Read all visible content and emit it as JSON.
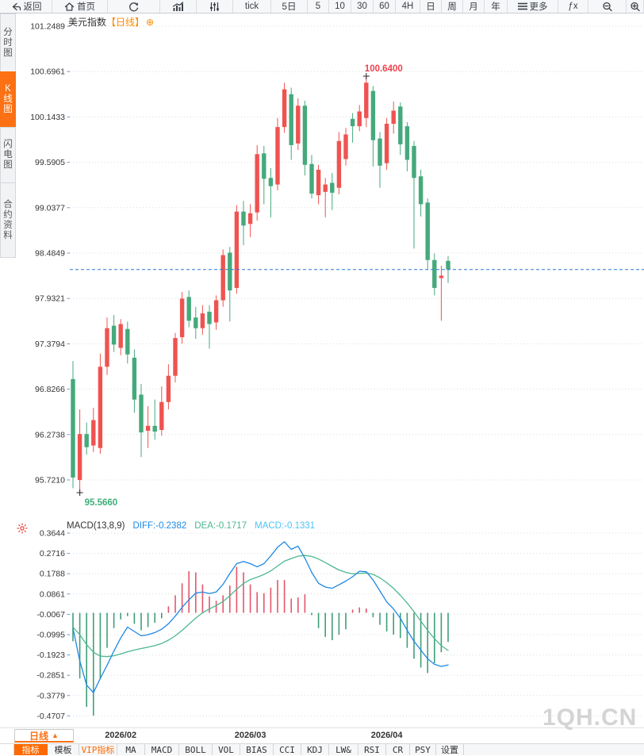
{
  "toolbar_top": {
    "items": [
      {
        "id": "back",
        "label": "返回",
        "icon": "back-arrow"
      },
      {
        "id": "home",
        "label": "首页",
        "icon": "home"
      },
      {
        "id": "refresh",
        "label": "",
        "icon": "refresh"
      },
      {
        "id": "chart-style",
        "label": "",
        "icon": "bar-chart"
      },
      {
        "id": "indicator-sliders",
        "label": "",
        "icon": "sliders"
      },
      {
        "id": "tick",
        "label": "tick"
      },
      {
        "id": "5d",
        "label": "5日"
      },
      {
        "id": "min5",
        "label": "5"
      },
      {
        "id": "min10",
        "label": "10"
      },
      {
        "id": "min30",
        "label": "30"
      },
      {
        "id": "min60",
        "label": "60"
      },
      {
        "id": "4h",
        "label": "4H"
      },
      {
        "id": "day",
        "label": "日"
      },
      {
        "id": "week",
        "label": "周"
      },
      {
        "id": "month",
        "label": "月"
      },
      {
        "id": "year",
        "label": "年"
      },
      {
        "id": "more",
        "label": "更多",
        "icon": "menu"
      },
      {
        "id": "fx",
        "label": "ƒx"
      },
      {
        "id": "zoom-out",
        "label": "",
        "icon": "zoom-out"
      },
      {
        "id": "zoom-in",
        "label": "",
        "icon": "zoom-in"
      }
    ]
  },
  "sidebar": {
    "items": [
      {
        "label": "分时图",
        "active": false
      },
      {
        "label": "K线图",
        "active": true
      },
      {
        "label": "闪电图",
        "active": false
      },
      {
        "label": "合约资料",
        "active": false
      }
    ]
  },
  "main_chart": {
    "title": "美元指数",
    "title_suffix": "【日线】",
    "y_labels": [
      "101.2489",
      "100.6961",
      "100.1433",
      "99.5905",
      "99.0377",
      "98.4849",
      "97.9321",
      "97.3794",
      "96.8266",
      "96.2738",
      "95.7210"
    ],
    "high_annotation": "100.6400",
    "low_annotation": "95.5660",
    "last_price": 98.285
  },
  "macd_panel": {
    "label": "MACD(13,8,9)",
    "diff_label": "DIFF:-0.2382",
    "dea_label": "DEA:-0.1717",
    "macd_label": "MACD:-0.1331",
    "y_labels": [
      "0.3644",
      "0.2716",
      "0.1788",
      "0.0861",
      "-0.0067",
      "-0.0995",
      "-0.1923",
      "-0.2851",
      "-0.3779",
      "-0.4707"
    ]
  },
  "x_axis": {
    "labels": [
      {
        "index": 7,
        "text": "2026/02"
      },
      {
        "index": 26,
        "text": "2026/03"
      },
      {
        "index": 46,
        "text": "2026/04"
      }
    ]
  },
  "bottom": {
    "period_label": "日线",
    "tabs": [
      {
        "label": "指标",
        "active": true
      },
      {
        "label": "模板"
      },
      {
        "label": "VIP指标",
        "vip": true
      },
      {
        "label": "MA"
      },
      {
        "label": "MACD"
      },
      {
        "label": "BOLL"
      },
      {
        "label": "VOL"
      },
      {
        "label": "BIAS"
      },
      {
        "label": "CCI"
      },
      {
        "label": "KDJ"
      },
      {
        "label": "LW&"
      },
      {
        "label": "RSI"
      },
      {
        "label": "CR"
      },
      {
        "label": "PSY"
      },
      {
        "label": "设置"
      }
    ]
  },
  "watermark": "1QH.CN",
  "icons": {
    "expand": "⊕",
    "triangle_up": "▲"
  },
  "colors": {
    "accent_orange": "#fb7113",
    "up_red": "#ef5350",
    "down_green": "#45a97c",
    "diff_blue": "#1e88e5",
    "dea_green": "#4cb88f",
    "macd_cyan": "#4fc3f7",
    "last_price_blue": "#2878d4",
    "annotation_red": "#f0414e",
    "annotation_green": "#3fae7a",
    "hist_red": "#e4566a",
    "hist_green": "#3f9f78",
    "grid": "#dcdcdc",
    "axis_text": "#333333"
  },
  "chart_data": [
    {
      "type": "candlestick",
      "title": "美元指数【日线】",
      "ylim": [
        95.721,
        101.2489
      ],
      "y_ticks": [
        101.2489,
        100.6961,
        100.1433,
        99.5905,
        99.0377,
        98.4849,
        97.9321,
        97.3794,
        96.8266,
        96.2738,
        95.721
      ],
      "x_tick_labels": [
        "2026/02",
        "2026/03",
        "2026/04"
      ],
      "x_tick_indices": [
        7,
        26,
        46
      ],
      "high_point": {
        "index": 43,
        "value": 100.64
      },
      "low_point": {
        "index": 1,
        "value": 95.566
      },
      "last_close": 98.285,
      "candles": [
        [
          96.95,
          97.17,
          95.62,
          95.75
        ],
        [
          95.72,
          96.58,
          95.566,
          96.28
        ],
        [
          96.28,
          96.42,
          96.03,
          96.12
        ],
        [
          96.14,
          96.6,
          96.06,
          96.45
        ],
        [
          96.11,
          97.26,
          96.04,
          97.1
        ],
        [
          97.1,
          97.7,
          97.0,
          97.57
        ],
        [
          97.6,
          97.73,
          97.28,
          97.37
        ],
        [
          97.33,
          97.68,
          97.24,
          97.62
        ],
        [
          97.56,
          97.65,
          97.14,
          97.25
        ],
        [
          97.21,
          97.31,
          96.54,
          96.7
        ],
        [
          96.76,
          96.89,
          96.0,
          96.3
        ],
        [
          96.32,
          96.62,
          96.11,
          96.38
        ],
        [
          96.38,
          96.7,
          96.21,
          96.31
        ],
        [
          96.33,
          96.86,
          96.26,
          96.67
        ],
        [
          96.67,
          97.13,
          96.58,
          96.99
        ],
        [
          96.99,
          97.51,
          96.91,
          97.45
        ],
        [
          97.46,
          98.01,
          97.38,
          97.93
        ],
        [
          97.95,
          98.03,
          97.58,
          97.66
        ],
        [
          97.7,
          97.83,
          97.44,
          97.57
        ],
        [
          97.57,
          97.85,
          97.49,
          97.75
        ],
        [
          97.77,
          97.85,
          97.32,
          97.62
        ],
        [
          97.64,
          97.97,
          97.55,
          97.91
        ],
        [
          97.91,
          98.53,
          97.83,
          98.46
        ],
        [
          98.49,
          98.56,
          97.65,
          98.03
        ],
        [
          98.06,
          99.07,
          97.99,
          98.99
        ],
        [
          98.99,
          99.12,
          98.58,
          98.82
        ],
        [
          98.84,
          99.08,
          98.68,
          98.97
        ],
        [
          98.98,
          99.8,
          98.88,
          99.69
        ],
        [
          99.7,
          99.79,
          99.08,
          99.39
        ],
        [
          99.4,
          99.52,
          98.92,
          99.3
        ],
        [
          99.32,
          100.13,
          99.25,
          100.02
        ],
        [
          100.02,
          100.56,
          99.95,
          100.48
        ],
        [
          100.42,
          100.5,
          99.62,
          99.8
        ],
        [
          99.82,
          100.37,
          99.74,
          100.28
        ],
        [
          100.28,
          100.34,
          99.43,
          99.56
        ],
        [
          99.57,
          99.68,
          99.15,
          99.21
        ],
        [
          99.19,
          99.56,
          99.08,
          99.5
        ],
        [
          99.23,
          99.4,
          98.92,
          99.32
        ],
        [
          99.34,
          99.46,
          99.01,
          99.22
        ],
        [
          99.28,
          99.96,
          99.2,
          99.85
        ],
        [
          99.63,
          100.01,
          99.55,
          99.93
        ],
        [
          100.12,
          100.19,
          99.83,
          100.03
        ],
        [
          100.03,
          100.29,
          99.97,
          100.21
        ],
        [
          100.13,
          100.64,
          100.02,
          100.56
        ],
        [
          100.46,
          100.52,
          99.54,
          99.86
        ],
        [
          99.88,
          99.96,
          99.28,
          99.55
        ],
        [
          99.58,
          100.13,
          99.5,
          100.06
        ],
        [
          100.06,
          100.33,
          99.94,
          100.22
        ],
        [
          100.27,
          100.32,
          99.68,
          99.81
        ],
        [
          100.03,
          100.08,
          99.48,
          99.62
        ],
        [
          99.79,
          99.85,
          98.54,
          99.4
        ],
        [
          99.42,
          99.5,
          98.93,
          99.08
        ],
        [
          99.1,
          99.15,
          98.28,
          98.4
        ],
        [
          98.4,
          98.48,
          97.97,
          98.06
        ],
        [
          98.18,
          98.33,
          97.66,
          98.21
        ],
        [
          98.39,
          98.45,
          98.12,
          98.285
        ]
      ]
    },
    {
      "type": "macd",
      "params": "MACD(13,8,9)",
      "ylim": [
        -0.4707,
        0.3644
      ],
      "y_ticks": [
        0.3644,
        0.2716,
        0.1788,
        0.0861,
        -0.0067,
        -0.0995,
        -0.1923,
        -0.2851,
        -0.3779,
        -0.4707
      ],
      "diff": [
        -0.07,
        -0.22,
        -0.33,
        -0.365,
        -0.3,
        -0.24,
        -0.175,
        -0.115,
        -0.065,
        -0.085,
        -0.105,
        -0.1,
        -0.09,
        -0.075,
        -0.05,
        -0.015,
        0.025,
        0.06,
        0.09,
        0.095,
        0.088,
        0.095,
        0.13,
        0.18,
        0.225,
        0.235,
        0.225,
        0.21,
        0.225,
        0.26,
        0.3,
        0.325,
        0.29,
        0.305,
        0.25,
        0.185,
        0.135,
        0.118,
        0.112,
        0.128,
        0.145,
        0.165,
        0.19,
        0.188,
        0.15,
        0.1,
        0.05,
        0.018,
        -0.025,
        -0.08,
        -0.13,
        -0.17,
        -0.21,
        -0.235,
        -0.245,
        -0.2382
      ],
      "dea": [
        -0.065,
        -0.1,
        -0.145,
        -0.18,
        -0.198,
        -0.2,
        -0.196,
        -0.188,
        -0.178,
        -0.17,
        -0.163,
        -0.157,
        -0.15,
        -0.14,
        -0.125,
        -0.105,
        -0.08,
        -0.052,
        -0.024,
        0.0,
        0.018,
        0.033,
        0.052,
        0.078,
        0.108,
        0.134,
        0.152,
        0.163,
        0.175,
        0.192,
        0.214,
        0.236,
        0.248,
        0.259,
        0.262,
        0.258,
        0.246,
        0.23,
        0.212,
        0.196,
        0.185,
        0.178,
        0.18,
        0.182,
        0.176,
        0.16,
        0.138,
        0.112,
        0.08,
        0.045,
        0.005,
        -0.038,
        -0.08,
        -0.118,
        -0.15,
        -0.1717
      ],
      "hist": [
        -0.13,
        -0.3,
        -0.43,
        -0.47,
        -0.3,
        -0.16,
        -0.07,
        -0.03,
        -0.015,
        -0.05,
        -0.08,
        -0.065,
        -0.045,
        -0.025,
        0.03,
        0.08,
        0.135,
        0.19,
        0.185,
        0.13,
        0.075,
        0.055,
        0.08,
        0.125,
        0.21,
        0.185,
        0.13,
        0.095,
        0.09,
        0.115,
        0.15,
        0.15,
        0.065,
        0.07,
        0.085,
        -0.01,
        -0.07,
        -0.11,
        -0.125,
        -0.1,
        -0.075,
        0.015,
        0.025,
        0.02,
        -0.02,
        -0.055,
        -0.085,
        -0.1,
        -0.115,
        -0.16,
        -0.21,
        -0.25,
        -0.275,
        -0.23,
        -0.18,
        -0.1331
      ]
    }
  ]
}
